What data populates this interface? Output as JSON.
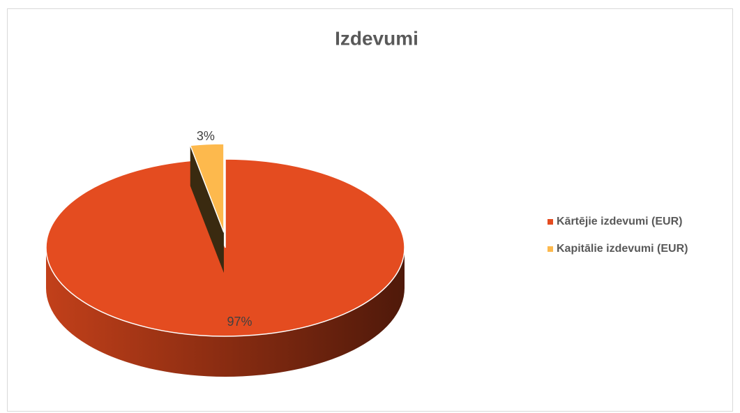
{
  "chart_data": {
    "type": "pie",
    "title": "Izdevumi",
    "categories": [
      "Kārtējie izdevumi (EUR)",
      "Kapitālie izdevumi (EUR)"
    ],
    "values": [
      97,
      3
    ],
    "value_labels": [
      "97%",
      "3%"
    ],
    "colors": [
      "#e44c20",
      "#fdb94d"
    ],
    "legend": "right"
  }
}
